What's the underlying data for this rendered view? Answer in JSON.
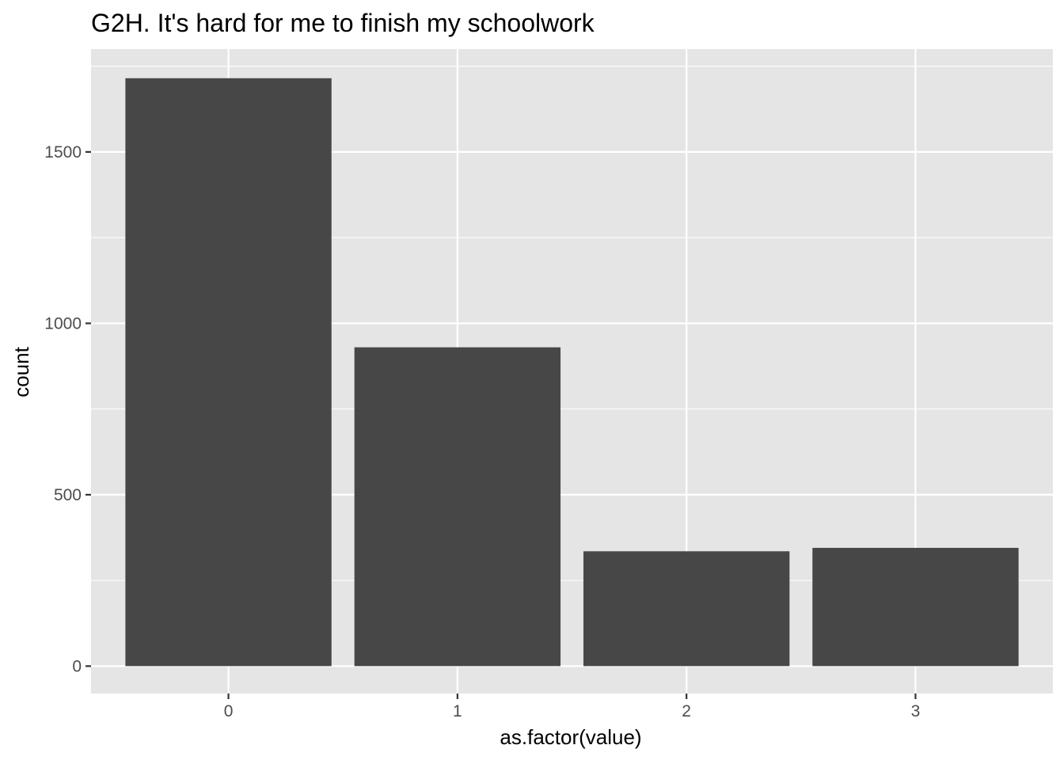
{
  "chart_data": {
    "type": "bar",
    "title": "G2H. It's hard for me to finish my schoolwork",
    "xlabel": "as.factor(value)",
    "ylabel": "count",
    "categories": [
      "0",
      "1",
      "2",
      "3"
    ],
    "values": [
      1715,
      930,
      335,
      345
    ],
    "ylim": [
      -80,
      1800
    ],
    "yticks": [
      0,
      500,
      1000,
      1500
    ],
    "y_minor_ticks": [
      250,
      750,
      1250,
      1750
    ],
    "grid": true,
    "legend": "none",
    "colors": {
      "bar": "#474747",
      "panel": "#e5e5e5",
      "grid": "#ffffff",
      "tick": "#333333",
      "tick_label": "#4d4d4d"
    }
  }
}
